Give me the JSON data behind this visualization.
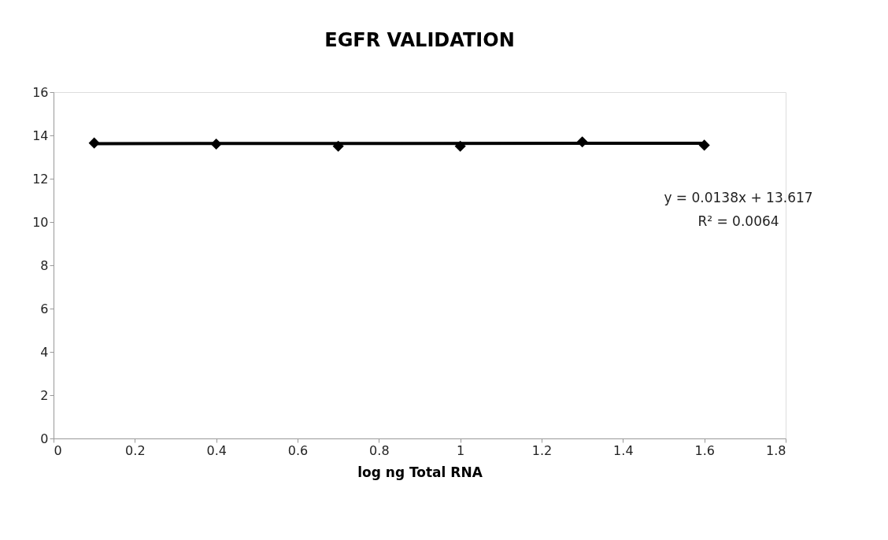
{
  "chart_data": {
    "type": "scatter",
    "title": "EGFR VALIDATION",
    "xlabel": "log ng Total RNA",
    "xlim": [
      0,
      1.8
    ],
    "xticks": [
      0,
      0.2,
      0.4,
      0.6,
      0.8,
      1,
      1.2,
      1.4,
      1.6,
      1.8
    ],
    "ylim": [
      0,
      16
    ],
    "yticks": [
      0,
      2,
      4,
      6,
      8,
      10,
      12,
      14,
      16
    ],
    "grid": false,
    "legend": false,
    "marker": "diamond",
    "series": [
      {
        "color": "#000000",
        "x": [
          0.1,
          0.4,
          0.7,
          1.0,
          1.3,
          1.6
        ],
        "values": [
          13.65,
          13.6,
          13.5,
          13.5,
          13.7,
          13.55
        ]
      },
      {
        "type": "line",
        "color": "#000000",
        "x": [
          0.1,
          1.6
        ],
        "values": [
          13.62,
          13.64
        ],
        "line_style": "solid",
        "marker": "none"
      }
    ],
    "annotations": [
      "y = 0.0138x + 13.617",
      "R² = 0.0064"
    ]
  }
}
